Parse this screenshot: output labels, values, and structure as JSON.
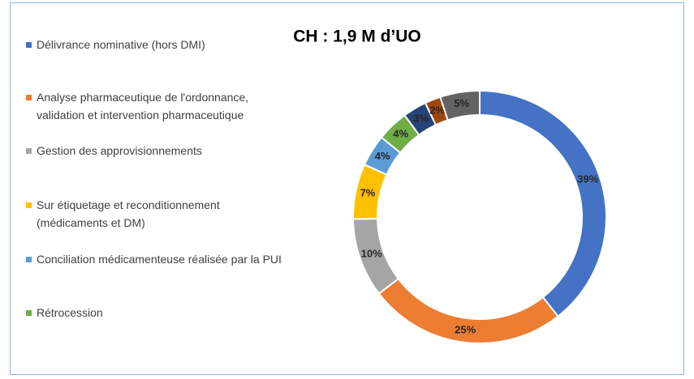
{
  "chart_data": {
    "type": "donut",
    "title": "CH : 1,9 M d’UO",
    "categories": [
      "Délivrance nominative (hors DMI)",
      "Analyse pharmaceutique de l'ordonnance, validation et intervention pharmaceutique",
      "Gestion des approvisionnements",
      "Sur étiquetage et reconditionnement (médicaments et DM)",
      "Conciliation médicamenteuse réalisée par la PUI",
      "Rétrocession",
      null,
      null,
      null
    ],
    "values": [
      39,
      25,
      10,
      7,
      4,
      4,
      3,
      2,
      5
    ],
    "value_labels": [
      "39%",
      "25%",
      "10%",
      "7%",
      "4%",
      "4%",
      "3%",
      "2%",
      "5%"
    ],
    "colors": [
      "#4472c4",
      "#ed7d31",
      "#a5a5a5",
      "#ffc000",
      "#5b9bd5",
      "#70ad47",
      "#264478",
      "#9e480e",
      "#636363"
    ],
    "legend": "left"
  }
}
